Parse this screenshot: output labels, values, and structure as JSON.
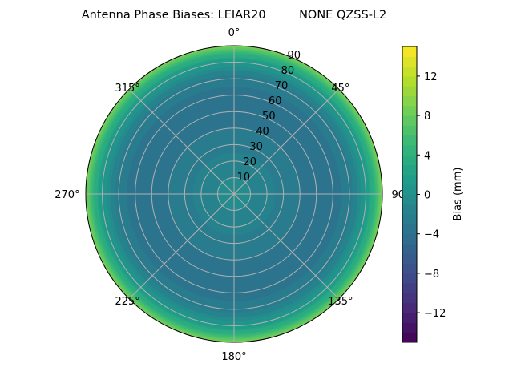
{
  "chart_data": {
    "type": "heatmap",
    "projection": "polar",
    "title": "Antenna Phase Biases: LEIAR20         NONE QZSS-L2",
    "theta_direction": "clockwise",
    "theta_zero": "north",
    "theta_tick_labels": [
      "0°",
      "45°",
      "90°",
      "135°",
      "180°",
      "225°",
      "270°",
      "315°"
    ],
    "r_ticks": [
      10,
      20,
      30,
      40,
      50,
      60,
      70,
      80,
      90
    ],
    "r_tick_labels": [
      "10",
      "20",
      "30",
      "40",
      "50",
      "60",
      "70",
      "80",
      "90"
    ],
    "rlim": [
      0,
      90
    ],
    "grid": true,
    "colormap": "viridis",
    "colorbar": {
      "label": "Bias (mm)",
      "range": [
        -15,
        15
      ],
      "levels": 30,
      "ticks": [
        -12,
        -8,
        -4,
        0,
        4,
        8,
        12
      ],
      "tick_labels": [
        "−12",
        "−8",
        "−4",
        "0",
        "4",
        "8",
        "12"
      ]
    },
    "zenith_profile": {
      "zenith_deg": [
        0,
        10,
        20,
        30,
        40,
        50,
        60,
        70,
        75,
        80,
        85,
        90
      ],
      "bias_mm": [
        -0.5,
        -1,
        -1.5,
        -2.5,
        -3,
        -3.5,
        -3.5,
        -2.5,
        -1,
        1,
        4,
        9
      ]
    },
    "grid_color": "#b0b0b0"
  }
}
